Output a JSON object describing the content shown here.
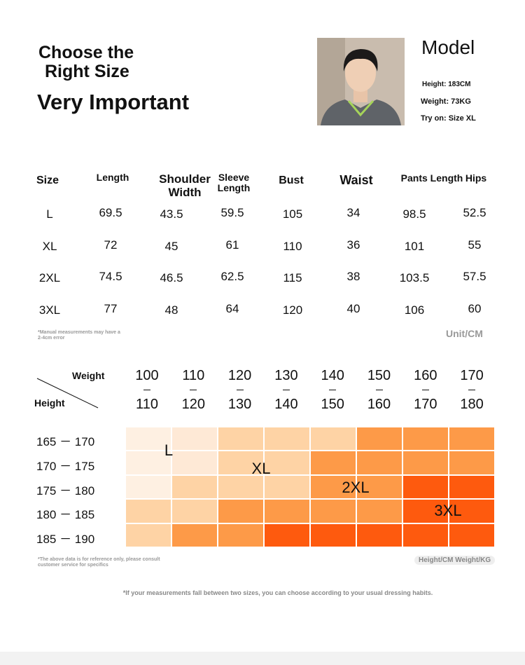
{
  "header": {
    "title_lines": [
      "Choose the",
      "Right Size"
    ],
    "subtitle": "Very Important"
  },
  "model": {
    "label": "Model",
    "height": "Height: 183CM",
    "weight": "Weight: 73KG",
    "try_on": "Try on: Size XL"
  },
  "size_table": {
    "columns": [
      "Size",
      "Length",
      "Shoulder Width",
      "Sleeve Length",
      "Bust",
      "Waist",
      "Pants Length",
      "Hips"
    ],
    "rows": [
      [
        "L",
        69.5,
        43.5,
        59.5,
        105,
        34,
        98.5,
        52.5
      ],
      [
        "XL",
        72,
        45,
        61,
        110,
        36,
        101,
        55
      ],
      [
        "2XL",
        74.5,
        46.5,
        62.5,
        115,
        38,
        103.5,
        57.5
      ],
      [
        "3XL",
        77,
        48,
        64,
        120,
        40,
        106,
        60
      ]
    ],
    "note": "*Manual measurements may have a 2-4cm error",
    "unit": "Unit/CM"
  },
  "size_chart": {
    "weight_label": "Weight",
    "height_label": "Height",
    "weight_ranges": [
      {
        "from": 100,
        "to": 110
      },
      {
        "from": 110,
        "to": 120
      },
      {
        "from": 120,
        "to": 130
      },
      {
        "from": 130,
        "to": 140
      },
      {
        "from": 140,
        "to": 150
      },
      {
        "from": 150,
        "to": 160
      },
      {
        "from": 160,
        "to": 170
      },
      {
        "from": 170,
        "to": 180
      }
    ],
    "height_ranges": [
      "165 － 170",
      "170 － 175",
      "175 － 180",
      "180 － 185",
      "185 － 190"
    ],
    "cell_colors": [
      [
        "#fef0e2",
        "#fee9d6",
        "#fed3a5",
        "#fed3a5",
        "#fed3a5",
        "#fd9a48",
        "#fd9a48",
        "#fd9a48"
      ],
      [
        "#fef0e2",
        "#fee9d6",
        "#fed3a5",
        "#fed3a5",
        "#fd9a48",
        "#fd9a48",
        "#fd9a48",
        "#fd9a48"
      ],
      [
        "#fef0e2",
        "#fed3a5",
        "#fed3a5",
        "#fed3a5",
        "#fd9a48",
        "#fd9a48",
        "#fe5a0e",
        "#fe5a0e"
      ],
      [
        "#fed3a5",
        "#fed3a5",
        "#fd9a48",
        "#fd9a48",
        "#fd9a48",
        "#fd9a48",
        "#fe5a0e",
        "#fe5a0e"
      ],
      [
        "#fed3a5",
        "#fd9a48",
        "#fd9a48",
        "#fe5a0e",
        "#fe5a0e",
        "#fe5a0e",
        "#fe5a0e",
        "#fe5a0e"
      ]
    ],
    "size_labels": [
      "L",
      "XL",
      "2XL",
      "3XL"
    ],
    "note": "*The above data is for reference only, please consult customer service for specifics",
    "unit": "Height/CM Weight/KG"
  },
  "footer_note": "*If your measurements fall between two sizes, you can choose according to your usual dressing habits."
}
